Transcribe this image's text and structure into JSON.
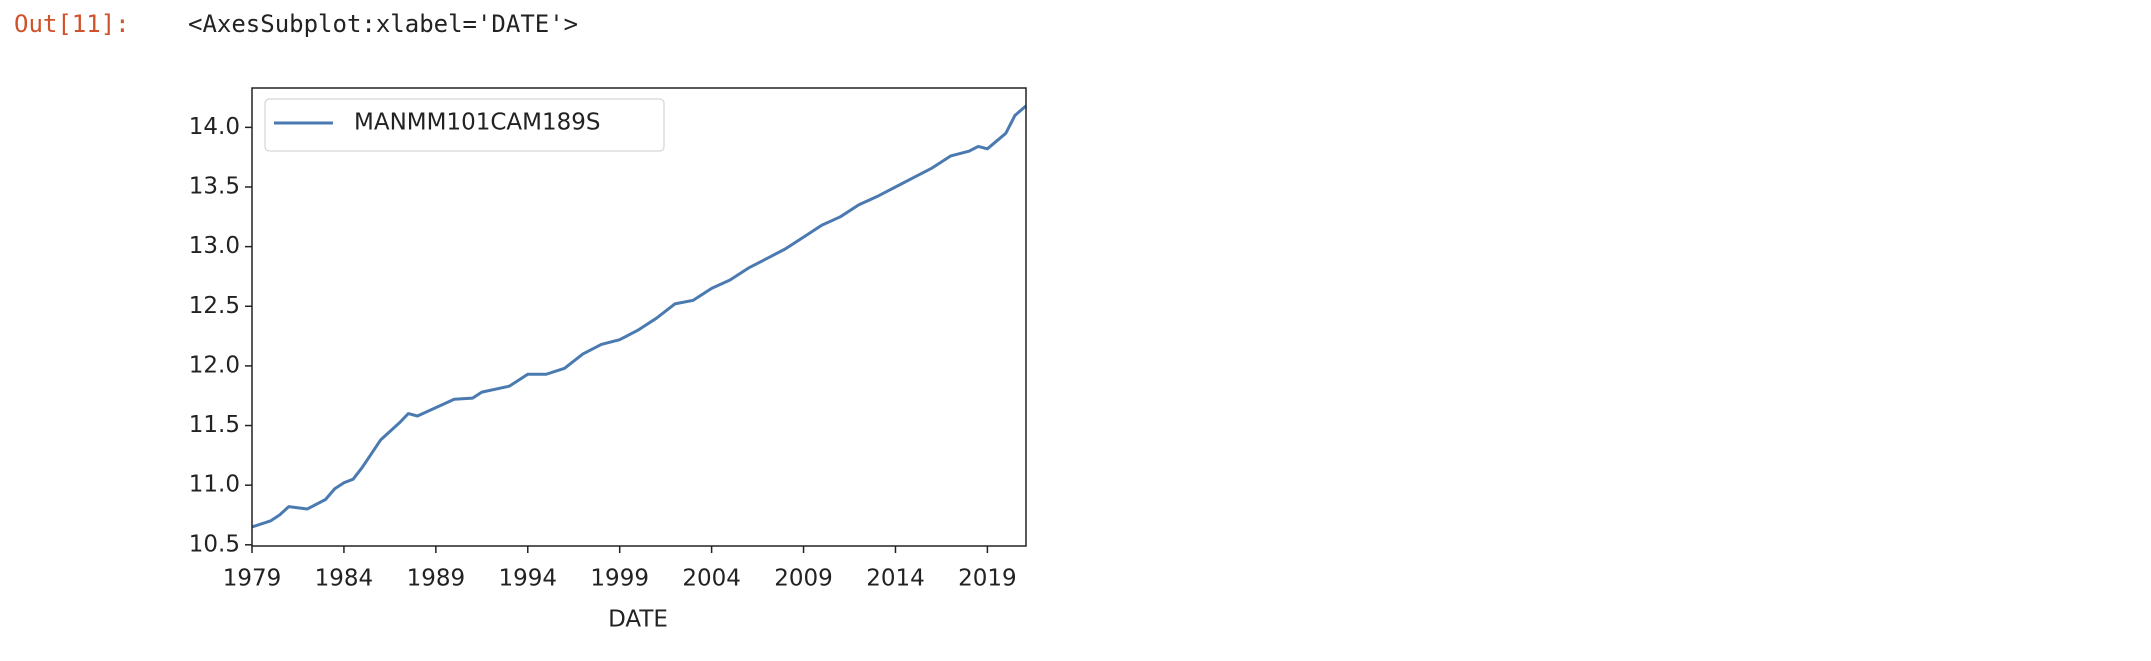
{
  "prompt": "Out[11]:",
  "output": "<AxesSubplot:xlabel='DATE'>",
  "chart_data": {
    "type": "line",
    "xlabel": "DATE",
    "x": [
      1979,
      1980,
      1980.5,
      1981,
      1982,
      1983,
      1983.5,
      1984,
      1984.5,
      1985,
      1986,
      1987,
      1987.5,
      1988,
      1989,
      1990,
      1991,
      1991.5,
      1993,
      1994,
      1995,
      1996,
      1997,
      1998,
      1999,
      2000,
      2001,
      2002,
      2003,
      2004,
      2005,
      2006,
      2007,
      2008,
      2009,
      2010,
      2011,
      2012,
      2013,
      2014,
      2015,
      2016,
      2017,
      2018,
      2018.5,
      2019,
      2020,
      2020.5,
      2021.1
    ],
    "series": [
      {
        "name": "MANMM101CAM189S",
        "color": "#4a7ab0",
        "values": [
          10.65,
          10.7,
          10.75,
          10.82,
          10.8,
          10.88,
          10.97,
          11.02,
          11.05,
          11.15,
          11.38,
          11.52,
          11.6,
          11.58,
          11.65,
          11.72,
          11.73,
          11.78,
          11.83,
          11.93,
          11.93,
          11.98,
          12.1,
          12.18,
          12.22,
          12.3,
          12.4,
          12.52,
          12.55,
          12.65,
          12.72,
          12.82,
          12.9,
          12.98,
          13.08,
          13.18,
          13.25,
          13.35,
          13.42,
          13.5,
          13.58,
          13.66,
          13.76,
          13.8,
          13.84,
          13.82,
          13.95,
          14.1,
          14.18
        ]
      }
    ],
    "xlim": [
      1979,
      2021.1
    ],
    "ylim": [
      10.49,
      14.33
    ],
    "xticks": [
      1979,
      1984,
      1989,
      1994,
      1999,
      2004,
      2009,
      2014,
      2019
    ],
    "yticks": [
      {
        "value": 10.5,
        "label": "10.5"
      },
      {
        "value": 11,
        "label": "11.0"
      },
      {
        "value": 11.5,
        "label": "11.5"
      },
      {
        "value": 12,
        "label": "12.0"
      },
      {
        "value": 12.5,
        "label": "12.5"
      },
      {
        "value": 13,
        "label": "13.0"
      },
      {
        "value": 13.5,
        "label": "13.5"
      },
      {
        "value": 14,
        "label": "14.0"
      }
    ],
    "legend": "upper left",
    "grid": false
  }
}
